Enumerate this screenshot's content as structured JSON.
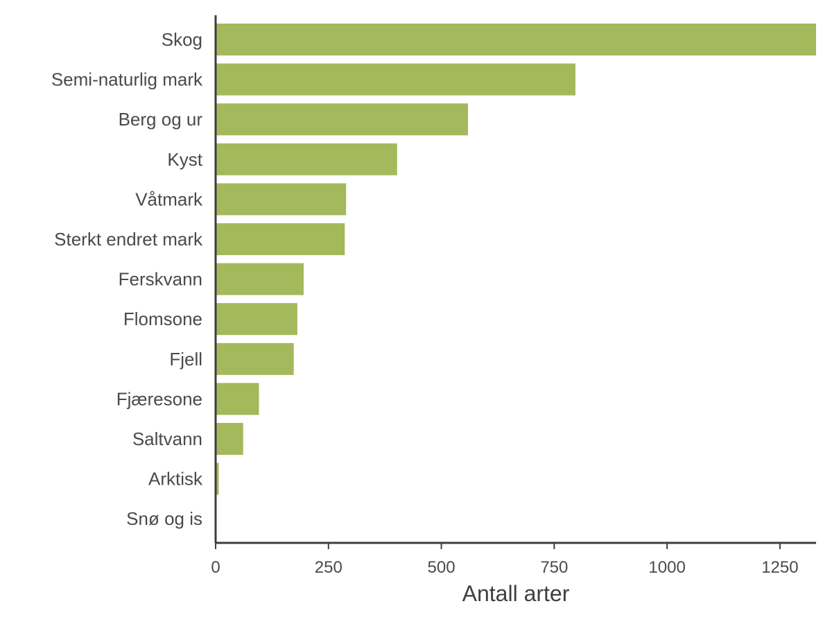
{
  "colors": {
    "bar": "#a3b95b",
    "axis": "#3d3d3d",
    "text": "#4a4a4a"
  },
  "chart_data": {
    "type": "bar",
    "orientation": "horizontal",
    "title": "",
    "xlabel": "Antall arter",
    "ylabel": "",
    "xlim": [
      0,
      1330
    ],
    "xticks": [
      0,
      250,
      500,
      750,
      1000,
      1250
    ],
    "grid": false,
    "categories": [
      "Skog",
      "Semi-naturlig mark",
      "Berg og ur",
      "Kyst",
      "Våtmark",
      "Sterkt endret mark",
      "Ferskvann",
      "Flomsone",
      "Fjell",
      "Fjæresone",
      "Saltvann",
      "Arktisk",
      "Snø og is"
    ],
    "values": [
      1330,
      797,
      559,
      402,
      289,
      286,
      195,
      181,
      173,
      96,
      61,
      7,
      2
    ]
  }
}
